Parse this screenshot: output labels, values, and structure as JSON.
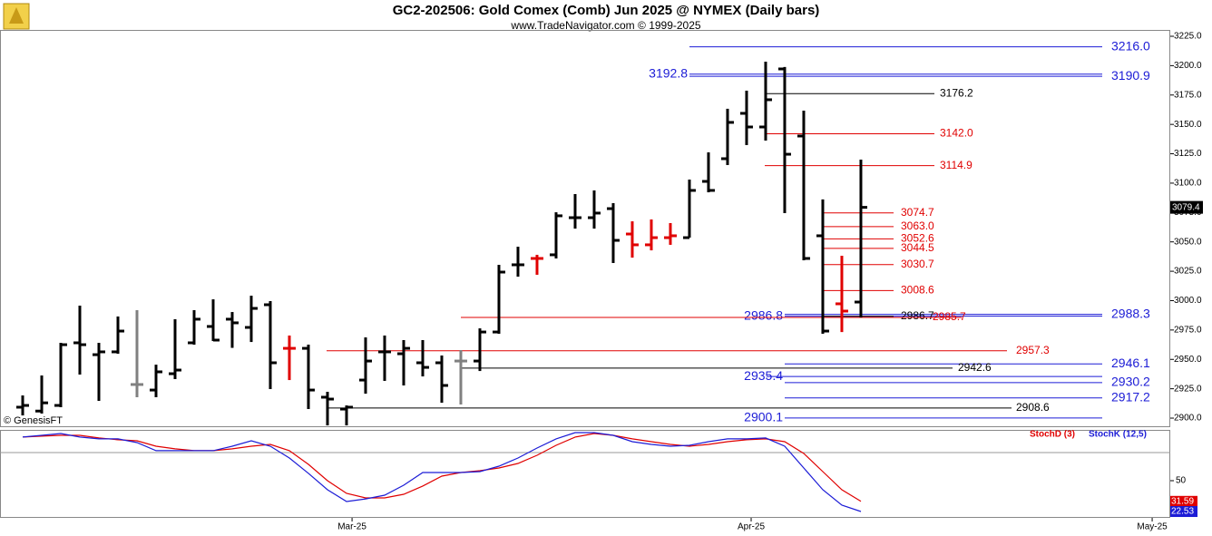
{
  "chart_data": [
    {
      "type": "ohlc",
      "title": "GC2-202506:  Gold Comex (Comb) Jun 2025 @ NYMEX  (Daily bars)",
      "subtitle": "www.TradeNavigator.com © 1999-2025",
      "annotation": "© GenesisFT",
      "categories": [
        null,
        null,
        null,
        null,
        null,
        null,
        null,
        null,
        null,
        null,
        null,
        null,
        null,
        null,
        null,
        null,
        null,
        null,
        null,
        null,
        null,
        null,
        null,
        null,
        null,
        null,
        null,
        null,
        null,
        null,
        null,
        null,
        null,
        null,
        null,
        null,
        null,
        null,
        null,
        null,
        null,
        null,
        null,
        null,
        null
      ],
      "open": [
        2909.3,
        2906,
        2910.8,
        2964.1,
        2954,
        2956.4,
        2928.6,
        2923.9,
        2937.8,
        2964.1,
        2978,
        2984.2,
        2977.2,
        2996.5,
        2959.4,
        2959.4,
        2917.8,
        2907.7,
        2932.4,
        2956.4,
        2954.8,
        2947.1,
        2947.1,
        2948.6,
        2948.6,
        2973.3,
        3030.5,
        3035.9,
        3039,
        3070.6,
        3070.6,
        3078.3,
        3056.7,
        3047.5,
        3053.6,
        3053.6,
        3101.5,
        3120.8,
        3159.4,
        3147.8,
        3197.2,
        3140.1,
        3055.2,
        2997.3,
        2998.8
      ],
      "high": [
        2919.3,
        2936.3,
        2964.1,
        2995.7,
        2964.1,
        2986.5,
        2991.9,
        2945.5,
        2984.2,
        2991.9,
        3001.1,
        2990.3,
        3004.2,
        2999.6,
        2970.3,
        2962.5,
        2922.4,
        2910.8,
        2968.7,
        2970.3,
        2966.4,
        2966.4,
        2953.3,
        2957.9,
        2976.4,
        3030.5,
        3045.9,
        3039,
        3075.2,
        3090.7,
        3093.8,
        3083,
        3067.5,
        3069.1,
        3066,
        3103,
        3126.2,
        3163.3,
        3178.7,
        3203.4,
        3198.8,
        3161.7,
        3086.1,
        3038.2,
        3120
      ],
      "low": [
        2902.3,
        2903.9,
        2909.3,
        2937.1,
        2914.7,
        2954.8,
        2917.8,
        2917.8,
        2933.2,
        2962.5,
        2965.6,
        2959.8,
        2964.8,
        2924.7,
        2932.4,
        2907.7,
        2893.8,
        2893.8,
        2920.8,
        2931.7,
        2927.8,
        2935.5,
        2913.1,
        2911.6,
        2940.1,
        2971.8,
        3020.4,
        3022,
        3035.9,
        3061.3,
        3061.3,
        3032,
        3036.6,
        3042.8,
        3047.5,
        3053.6,
        3092.2,
        3115.4,
        3132.4,
        3136.2,
        3074.5,
        3034.3,
        2971.8,
        2973.3,
        2985.7
      ],
      "close": [
        2910.8,
        2913,
        2962.5,
        2962.5,
        2956.4,
        2974.1,
        2928.6,
        2939.4,
        2940.9,
        2984.2,
        2966.4,
        2981.1,
        2993.4,
        2947.1,
        2959.4,
        2923.9,
        2916.2,
        2909.3,
        2948.6,
        2956.4,
        2959.4,
        2943.2,
        2927.8,
        2948.6,
        2973.3,
        3024.3,
        3030.5,
        3035.9,
        3072.2,
        3070.6,
        3074.5,
        3051.3,
        3047.5,
        3053.6,
        3055.2,
        3093.8,
        3093.8,
        3151.7,
        3147.8,
        3171,
        3124.6,
        3035.9,
        2974.1,
        2991.1,
        3079.4
      ],
      "colors": [
        "#000000",
        "#000000",
        "#000000",
        "#000000",
        "#000000",
        "#000000",
        "#808080",
        "#000000",
        "#000000",
        "#000000",
        "#000000",
        "#000000",
        "#000000",
        "#000000",
        "#e00000",
        "#000000",
        "#000000",
        "#000000",
        "#000000",
        "#000000",
        "#000000",
        "#000000",
        "#000000",
        "#808080",
        "#000000",
        "#000000",
        "#000000",
        "#e00000",
        "#000000",
        "#000000",
        "#000000",
        "#000000",
        "#e00000",
        "#e00000",
        "#e00000",
        "#000000",
        "#000000",
        "#000000",
        "#000000",
        "#000000",
        "#000000",
        "#000000",
        "#000000",
        "#e00000",
        "#000000"
      ],
      "levels": [
        {
          "value": 3216,
          "label": "3216.0",
          "color": "#1c1cd6"
        },
        {
          "value": 3192.8,
          "label": "3192.8",
          "color": "#1c1cd6"
        },
        {
          "value": 3190.9,
          "label": "3190.9",
          "color": "#1c1cd6"
        },
        {
          "value": 3176.2,
          "label": "3176.2",
          "color": "#000000"
        },
        {
          "value": 3142,
          "label": "3142.0",
          "color": "#e00000"
        },
        {
          "value": 3114.9,
          "label": "3114.9",
          "color": "#e00000"
        },
        {
          "value": 3074.7,
          "label": "3074.7",
          "color": "#e00000"
        },
        {
          "value": 3063,
          "label": "3063.0",
          "color": "#e00000"
        },
        {
          "value": 3052.6,
          "label": "3052.6",
          "color": "#e00000"
        },
        {
          "value": 3044.5,
          "label": "3044.5",
          "color": "#e00000"
        },
        {
          "value": 3030.7,
          "label": "3030.7",
          "color": "#e00000"
        },
        {
          "value": 3008.6,
          "label": "3008.6",
          "color": "#e00000"
        },
        {
          "value": 2988.3,
          "label": "2988.3",
          "color": "#1c1cd6"
        },
        {
          "value": 2986.8,
          "label": "2986.8",
          "color": "#1c1cd6"
        },
        {
          "value": 2986.7,
          "label": "2986.7",
          "color": "#000000"
        },
        {
          "value": 2985.7,
          "label": "2985.7",
          "color": "#e00000"
        },
        {
          "value": 2957.3,
          "label": "2957.3",
          "color": "#e00000"
        },
        {
          "value": 2946.1,
          "label": "2946.1",
          "color": "#1c1cd6"
        },
        {
          "value": 2942.6,
          "label": "2942.6",
          "color": "#000000"
        },
        {
          "value": 2935.4,
          "label": "2935.4",
          "color": "#1c1cd6"
        },
        {
          "value": 2930.2,
          "label": "2930.2",
          "color": "#1c1cd6"
        },
        {
          "value": 2917.2,
          "label": "2917.2",
          "color": "#1c1cd6"
        },
        {
          "value": 2908.6,
          "label": "2908.6",
          "color": "#000000"
        },
        {
          "value": 2900.1,
          "label": "2900.1",
          "color": "#1c1cd6"
        }
      ],
      "xlim": [
        -1.19,
        60.24
      ],
      "ylim": [
        2892.3,
        3230.4
      ],
      "yticks": [
        {
          "value": 2900,
          "label": "2900.0"
        },
        {
          "value": 2925,
          "label": "2925.0"
        },
        {
          "value": 2950,
          "label": "2950.0"
        },
        {
          "value": 2975,
          "label": "2975.0"
        },
        {
          "value": 3000,
          "label": "3000.0"
        },
        {
          "value": 3025,
          "label": "3025.0"
        },
        {
          "value": 3050,
          "label": "3050.0"
        },
        {
          "value": 3075,
          "label": "3075.0"
        },
        {
          "value": 3100,
          "label": "3100.0"
        },
        {
          "value": 3125,
          "label": "3125.0"
        },
        {
          "value": 3150,
          "label": "3150.0"
        },
        {
          "value": 3175,
          "label": "3175.0"
        },
        {
          "value": 3200,
          "label": "3200.0"
        },
        {
          "value": 3225,
          "label": "3225.0"
        }
      ]
    },
    {
      "type": "line",
      "series": [
        {
          "name": "StochD (3)",
          "color": "#e00000",
          "values": [
            88.8,
            89.6,
            90.4,
            90.4,
            88.0,
            86.4,
            85.5,
            80.7,
            78.3,
            76.7,
            76.7,
            78.3,
            80.7,
            82.3,
            76.7,
            64.5,
            50.0,
            38.7,
            34.7,
            34.7,
            37.9,
            45.2,
            54.0,
            57.3,
            58.9,
            61.3,
            65.3,
            72.6,
            81.5,
            88.8,
            92.0,
            90.4,
            87.2,
            84.7,
            82.3,
            80.7,
            82.3,
            84.7,
            86.4,
            87.2,
            84.7,
            74.2,
            58.1,
            41.9,
            31.59
          ]
        },
        {
          "name": "StochK (12,5)",
          "color": "#1c1cd6",
          "values": [
            88.8,
            90.4,
            92.0,
            88.8,
            87.2,
            87.2,
            83.9,
            76.7,
            76.7,
            76.7,
            76.7,
            80.7,
            85.5,
            80.7,
            70.2,
            56.5,
            41.9,
            31.4,
            33.8,
            37.1,
            46.0,
            57.3,
            57.3,
            57.3,
            58.1,
            62.9,
            70.2,
            79.1,
            87.2,
            92.8,
            92.8,
            90.4,
            84.7,
            82.3,
            80.7,
            81.5,
            84.7,
            87.2,
            87.2,
            88.0,
            80.7,
            61.3,
            41.9,
            28.2,
            22.53
          ]
        }
      ],
      "xlim": [
        -1.19,
        60.24
      ],
      "xticks": [
        {
          "value": 17.29,
          "label": "Mar-25"
        },
        {
          "value": 38.24,
          "label": "Apr-25"
        },
        {
          "value": 59.29,
          "label": "May-25"
        }
      ],
      "ylim": [
        16.9,
        94.4
      ],
      "yticks": [
        50
      ]
    }
  ]
}
